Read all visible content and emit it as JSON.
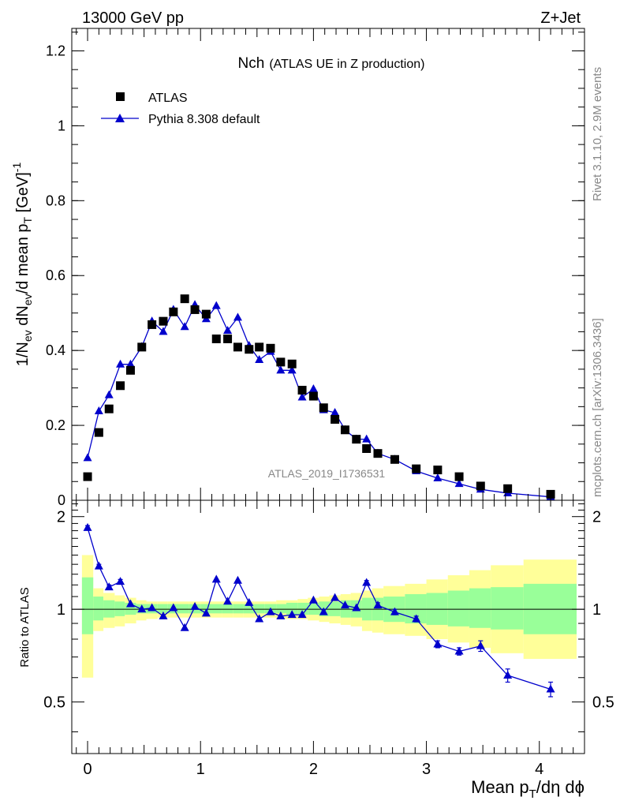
{
  "header": {
    "left_title": "13000 GeV pp",
    "right_title": "Z+Jet"
  },
  "side_labels": {
    "rivet": "Rivet 3.1.10,  2.9M events",
    "mcplots": "mcplots.cern.ch [arXiv:1306.3436]"
  },
  "chart_data": [
    {
      "type": "scatter",
      "title_main": "Nch",
      "title_sub": "(ATLAS UE in Z production)",
      "watermark": "ATLAS_2019_I1736531",
      "ylabel": "1/N_ev dN_ev/d mean p_T [GeV]^-1",
      "xlim": [
        -0.14,
        4.4
      ],
      "ylim": [
        0,
        1.26
      ],
      "yticks": [
        0,
        0.2,
        0.4,
        0.6,
        0.8,
        1,
        1.2
      ],
      "ytick_labels": [
        "0",
        "0.2",
        "0.4",
        "0.6",
        "0.8",
        "1",
        "1.2"
      ],
      "legend_position": "top-left",
      "series": [
        {
          "name": "ATLAS",
          "marker": "square",
          "color": "#000000",
          "x": [
            0.0,
            0.1,
            0.19,
            0.29,
            0.38,
            0.48,
            0.57,
            0.67,
            0.76,
            0.86,
            0.95,
            1.05,
            1.14,
            1.24,
            1.33,
            1.43,
            1.52,
            1.62,
            1.71,
            1.81,
            1.9,
            2.0,
            2.09,
            2.19,
            2.28,
            2.38,
            2.47,
            2.57,
            2.72,
            2.91,
            3.1,
            3.29,
            3.48,
            3.72,
            4.1
          ],
          "y": [
            0.063,
            0.181,
            0.244,
            0.306,
            0.347,
            0.409,
            0.469,
            0.478,
            0.503,
            0.538,
            0.509,
            0.497,
            0.431,
            0.431,
            0.409,
            0.403,
            0.409,
            0.406,
            0.369,
            0.364,
            0.294,
            0.278,
            0.247,
            0.216,
            0.188,
            0.163,
            0.138,
            0.125,
            0.109,
            0.084,
            0.081,
            0.063,
            0.038,
            0.031,
            0.016
          ]
        },
        {
          "name": "Pythia 8.308 default",
          "marker": "triangle",
          "color": "#0000cc",
          "x": [
            0.0,
            0.1,
            0.19,
            0.29,
            0.38,
            0.48,
            0.57,
            0.67,
            0.76,
            0.86,
            0.95,
            1.05,
            1.14,
            1.24,
            1.33,
            1.43,
            1.52,
            1.62,
            1.71,
            1.81,
            1.9,
            2.0,
            2.09,
            2.19,
            2.28,
            2.38,
            2.47,
            2.57,
            2.72,
            2.91,
            3.1,
            3.29,
            3.48,
            3.72,
            4.1
          ],
          "y": [
            0.113,
            0.238,
            0.281,
            0.363,
            0.363,
            0.41,
            0.478,
            0.45,
            0.509,
            0.463,
            0.522,
            0.484,
            0.519,
            0.453,
            0.488,
            0.413,
            0.375,
            0.397,
            0.347,
            0.347,
            0.275,
            0.297,
            0.241,
            0.234,
            0.188,
            0.163,
            0.163,
            0.125,
            0.109,
            0.078,
            0.059,
            0.044,
            0.029,
            0.019,
            0.009
          ]
        }
      ]
    },
    {
      "type": "line",
      "ylabel": "Ratio to ATLAS",
      "xlabel": "Mean p_T/dη dϕ",
      "xlim": [
        -0.14,
        4.4
      ],
      "ylim": [
        0.34,
        2.26
      ],
      "yticks": [
        0.5,
        1,
        2
      ],
      "ytick_labels": [
        "0.5",
        "1",
        "2"
      ],
      "xticks": [
        0,
        1,
        2,
        3,
        4
      ],
      "xtick_labels": [
        "0",
        "1",
        "2",
        "3",
        "4"
      ],
      "reference_line": 1,
      "bands": {
        "edges": [
          -0.05,
          0.05,
          0.14,
          0.24,
          0.33,
          0.43,
          0.52,
          0.62,
          0.71,
          0.81,
          0.9,
          1.0,
          1.1,
          1.19,
          1.29,
          1.38,
          1.48,
          1.57,
          1.67,
          1.76,
          1.86,
          1.95,
          2.05,
          2.14,
          2.24,
          2.33,
          2.43,
          2.52,
          2.62,
          2.81,
          3.0,
          3.19,
          3.38,
          3.57,
          3.86,
          4.33
        ],
        "inner_color": "#99ff99",
        "outer_color": "#ffff99",
        "inner_lo": [
          0.83,
          0.92,
          0.94,
          0.95,
          0.96,
          0.97,
          0.97,
          0.97,
          0.97,
          0.97,
          0.97,
          0.97,
          0.97,
          0.97,
          0.97,
          0.97,
          0.97,
          0.97,
          0.97,
          0.96,
          0.96,
          0.96,
          0.95,
          0.95,
          0.94,
          0.94,
          0.92,
          0.92,
          0.91,
          0.9,
          0.89,
          0.88,
          0.87,
          0.86,
          0.83
        ],
        "inner_hi": [
          1.27,
          1.1,
          1.07,
          1.06,
          1.05,
          1.04,
          1.04,
          1.04,
          1.04,
          1.04,
          1.04,
          1.04,
          1.04,
          1.04,
          1.04,
          1.04,
          1.04,
          1.04,
          1.04,
          1.05,
          1.05,
          1.05,
          1.06,
          1.06,
          1.07,
          1.07,
          1.09,
          1.09,
          1.1,
          1.12,
          1.13,
          1.15,
          1.17,
          1.18,
          1.21
        ],
        "outer_lo": [
          0.6,
          0.85,
          0.87,
          0.88,
          0.9,
          0.92,
          0.93,
          0.94,
          0.94,
          0.94,
          0.94,
          0.94,
          0.94,
          0.94,
          0.94,
          0.94,
          0.94,
          0.94,
          0.93,
          0.93,
          0.93,
          0.92,
          0.91,
          0.9,
          0.89,
          0.88,
          0.85,
          0.84,
          0.83,
          0.82,
          0.8,
          0.78,
          0.75,
          0.72,
          0.69
        ],
        "outer_hi": [
          1.5,
          1.17,
          1.13,
          1.11,
          1.09,
          1.07,
          1.06,
          1.06,
          1.06,
          1.06,
          1.06,
          1.06,
          1.06,
          1.06,
          1.06,
          1.06,
          1.06,
          1.06,
          1.07,
          1.07,
          1.08,
          1.09,
          1.1,
          1.11,
          1.12,
          1.13,
          1.15,
          1.17,
          1.19,
          1.21,
          1.25,
          1.29,
          1.34,
          1.39,
          1.45
        ]
      },
      "series": [
        {
          "name": "Pythia 8.308 default",
          "color": "#0000cc",
          "x": [
            0.0,
            0.1,
            0.19,
            0.29,
            0.38,
            0.48,
            0.57,
            0.67,
            0.76,
            0.86,
            0.95,
            1.05,
            1.14,
            1.24,
            1.33,
            1.43,
            1.52,
            1.62,
            1.71,
            1.81,
            1.9,
            2.0,
            2.09,
            2.19,
            2.28,
            2.38,
            2.47,
            2.57,
            2.72,
            2.91,
            3.1,
            3.29,
            3.48,
            3.72,
            4.1
          ],
          "y": [
            1.84,
            1.38,
            1.18,
            1.23,
            1.04,
            1.0,
            1.01,
            0.95,
            1.01,
            0.87,
            1.02,
            0.97,
            1.25,
            1.06,
            1.24,
            1.05,
            0.93,
            0.98,
            0.95,
            0.96,
            0.96,
            1.07,
            0.98,
            1.09,
            1.03,
            1.01,
            1.22,
            1.03,
            0.98,
            0.93,
            0.77,
            0.73,
            0.76,
            0.61,
            0.55
          ],
          "err": [
            0.03,
            0.02,
            0.02,
            0.02,
            0.01,
            0.01,
            0.01,
            0.01,
            0.01,
            0.01,
            0.01,
            0.01,
            0.01,
            0.01,
            0.01,
            0.01,
            0.01,
            0.01,
            0.01,
            0.01,
            0.01,
            0.01,
            0.01,
            0.01,
            0.01,
            0.01,
            0.02,
            0.02,
            0.02,
            0.02,
            0.02,
            0.02,
            0.03,
            0.03,
            0.03
          ]
        }
      ]
    }
  ]
}
